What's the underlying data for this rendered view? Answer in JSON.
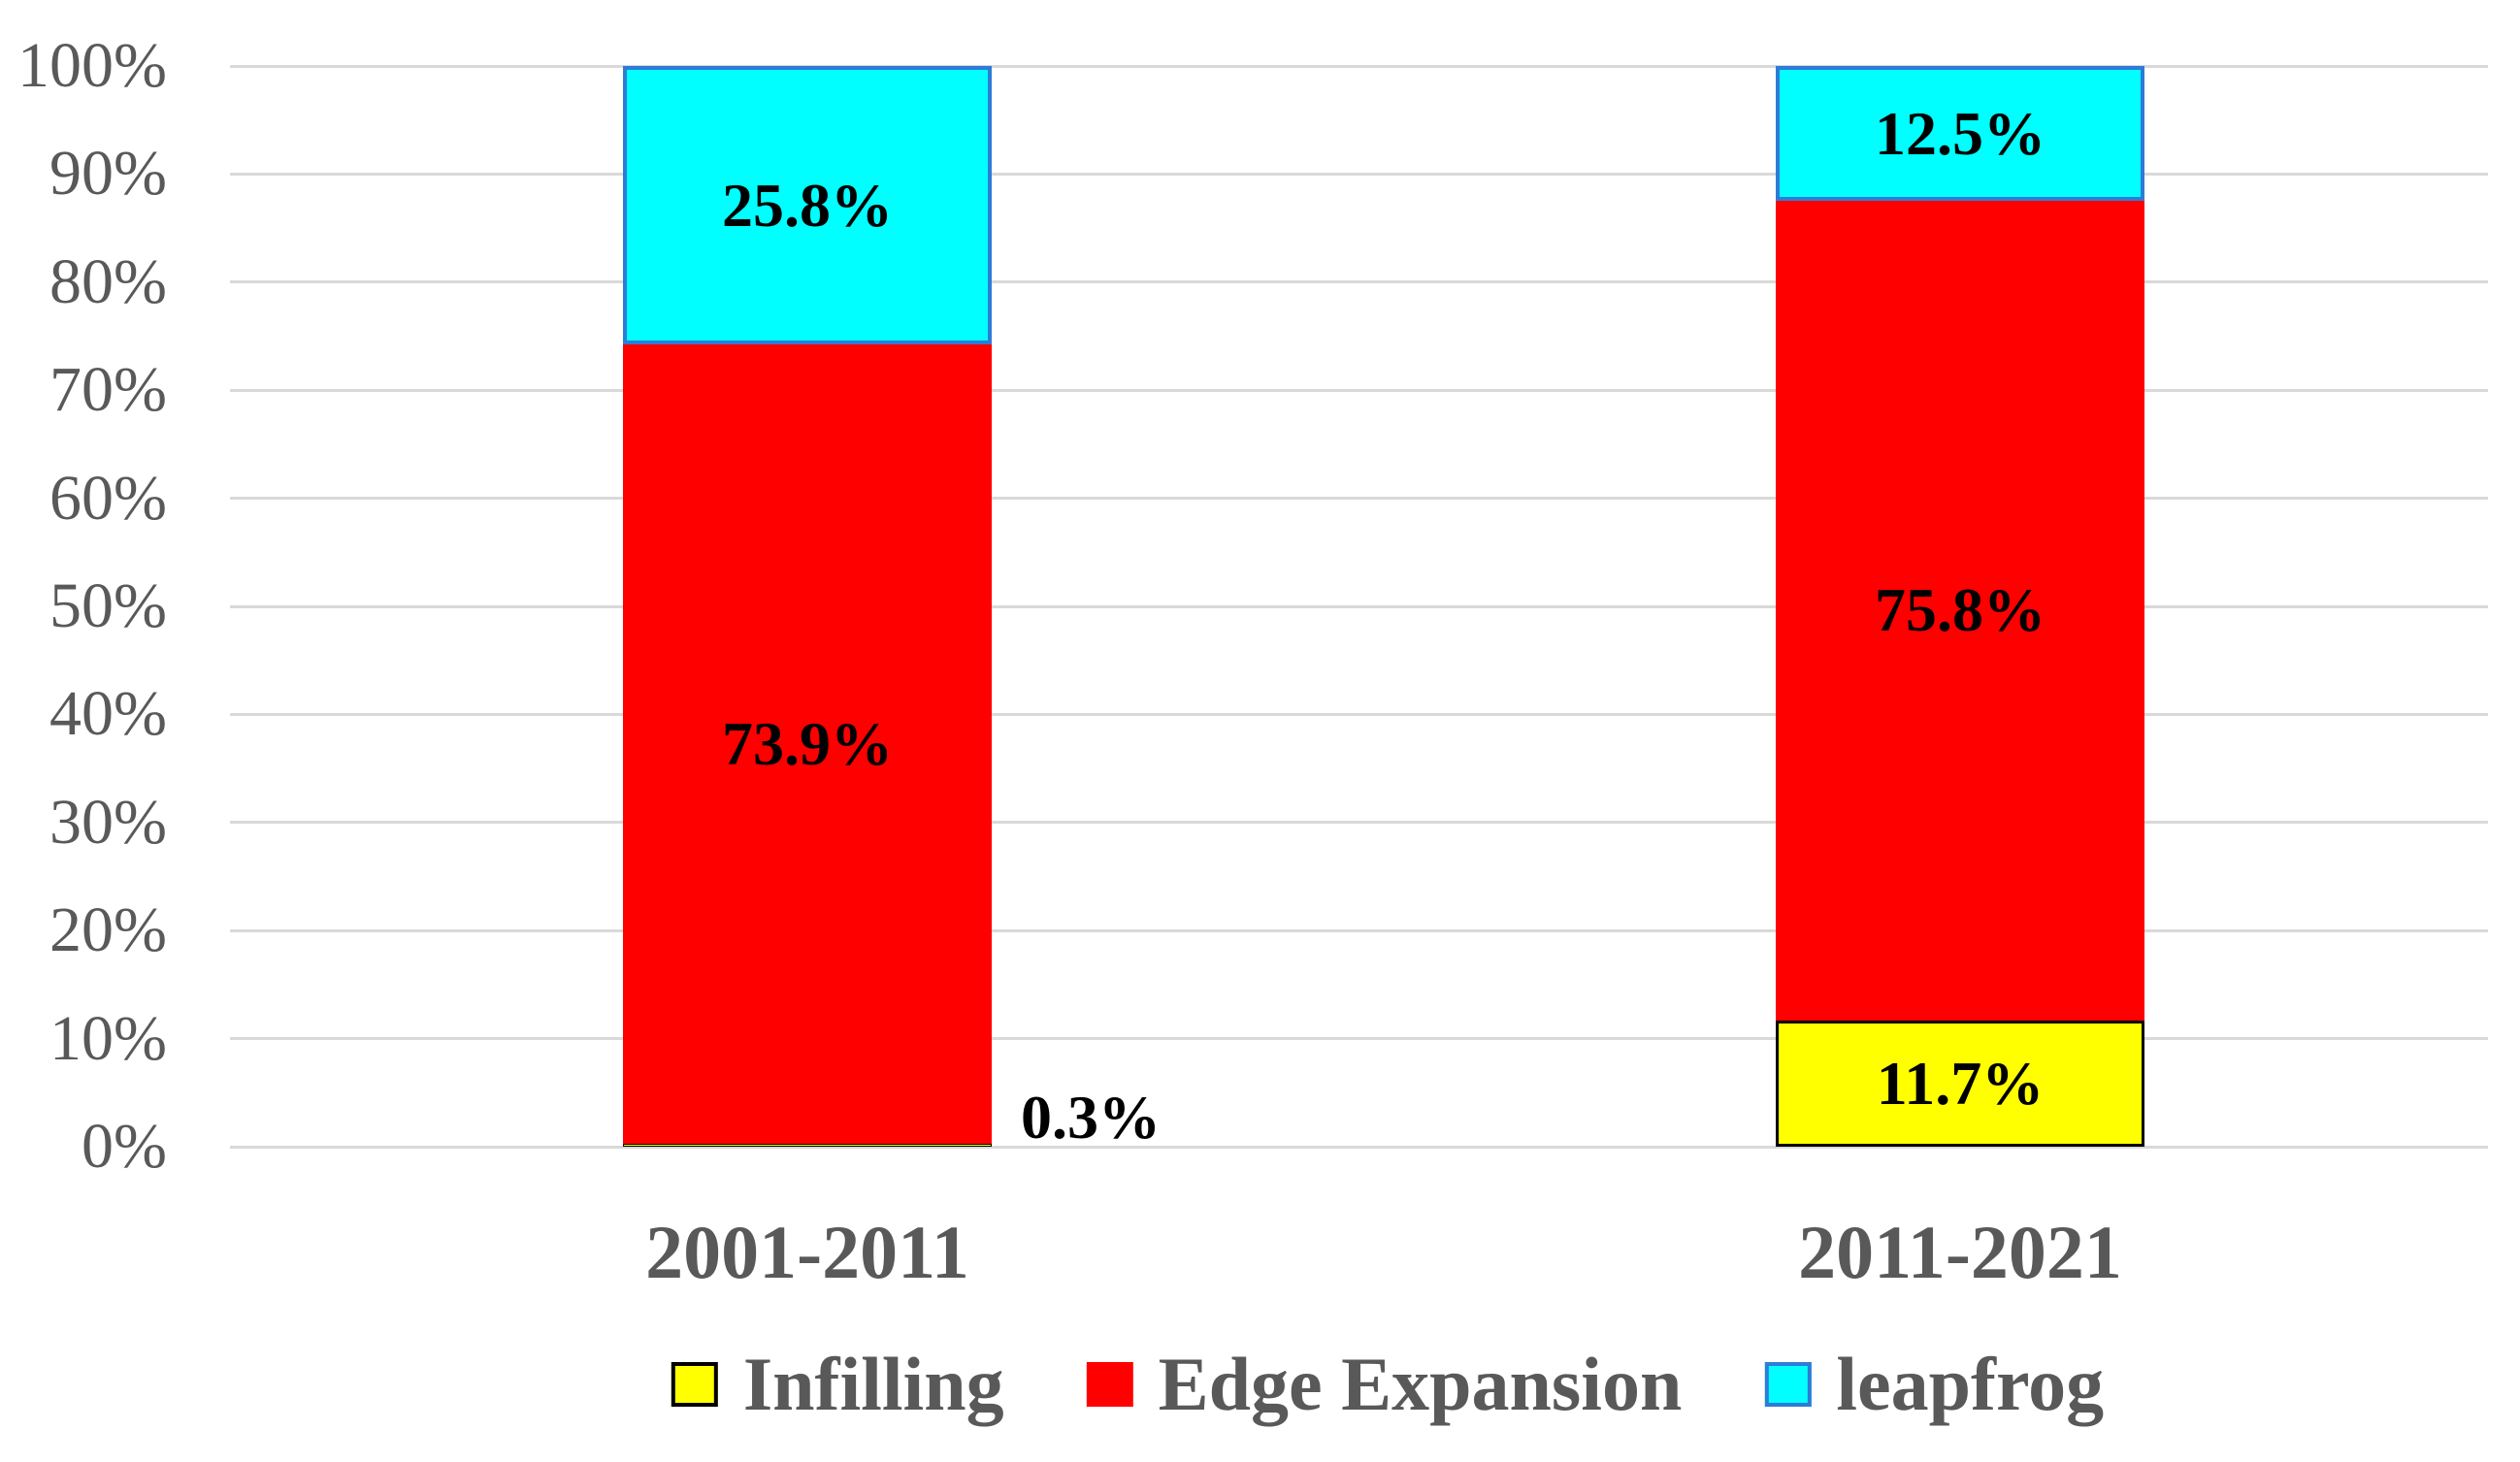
{
  "chart_data": {
    "type": "bar",
    "subtype": "stacked-100-percent",
    "title": "",
    "categories": [
      "2001-2011",
      "2011-2021"
    ],
    "series": [
      {
        "name": "Infilling",
        "color": "#FFFF00",
        "border_color": "#000000",
        "values": [
          0.3,
          11.7
        ],
        "data_labels": [
          "0.3%",
          "11.7%"
        ]
      },
      {
        "name": "Edge Expansion",
        "color": "#FF0000",
        "border_color": null,
        "values": [
          73.9,
          75.8
        ],
        "data_labels": [
          "73.9%",
          "75.8%"
        ]
      },
      {
        "name": "leapfrog",
        "color": "#00FFFF",
        "border_color": "#2E7CD6",
        "values": [
          25.8,
          12.5
        ],
        "data_labels": [
          "25.8%",
          "12.5%"
        ]
      }
    ],
    "y_axis": {
      "min": 0,
      "max": 100,
      "tick_step": 10,
      "tick_labels": [
        "0%",
        "10%",
        "20%",
        "30%",
        "40%",
        "50%",
        "60%",
        "70%",
        "80%",
        "90%",
        "100%"
      ]
    },
    "x_axis_labels": [
      "2001-2011",
      "2011-2021"
    ],
    "grid": true,
    "gridline_color": "#D9D9D9",
    "legend_position": "bottom",
    "legend_labels": [
      "Infilling",
      "Edge Expansion",
      "leapfrog"
    ],
    "axis_text_color": "#595959",
    "data_label_color": "#000000"
  }
}
